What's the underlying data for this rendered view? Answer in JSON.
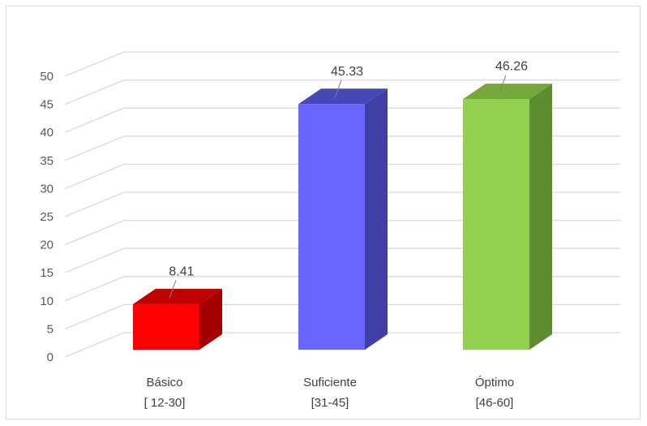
{
  "chart_data": {
    "type": "bar",
    "style": "3d-column",
    "categories": [
      {
        "line1": "Básico",
        "line2": "[ 12-30]"
      },
      {
        "line1": "Suficiente",
        "line2": "[31-45]"
      },
      {
        "line1": "Óptimo",
        "line2": "[46-60]"
      }
    ],
    "values": [
      8.41,
      45.33,
      46.26
    ],
    "value_labels": [
      "8.41",
      "45.33",
      "46.26"
    ],
    "ylim": [
      0,
      50
    ],
    "yticks": [
      0,
      5,
      10,
      15,
      20,
      25,
      30,
      35,
      40,
      45,
      50
    ],
    "grid": true,
    "title": "",
    "xlabel": "",
    "ylabel": "",
    "colors": [
      {
        "front": "#ff0000",
        "side": "#a50000",
        "top": "#c00000"
      },
      {
        "front": "#6666ff",
        "side": "#3f3fa5",
        "top": "#4747b8"
      },
      {
        "front": "#92d050",
        "side": "#5e8c30",
        "top": "#76a83c"
      }
    ]
  }
}
